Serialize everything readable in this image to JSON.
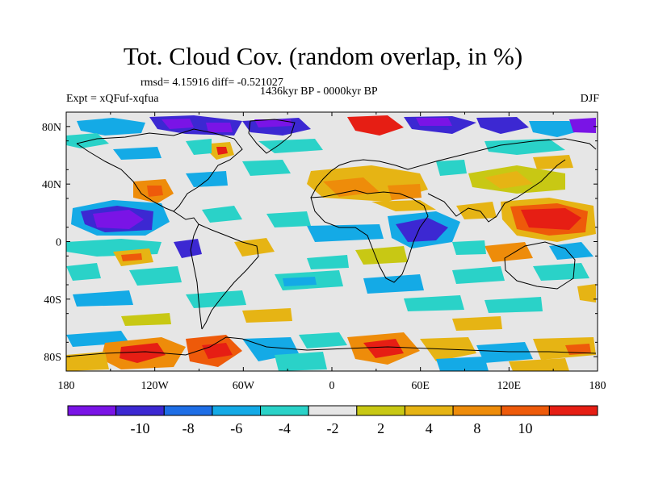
{
  "title": "Tot. Cloud Cov. (random overlap, in %)",
  "stats": "rmsd= 4.15916 diff= -0.521027",
  "period": "1436kyr BP - 0000kyr BP",
  "experiment": "Expt = xQFuf-xqfua",
  "season": "DJF",
  "map": {
    "lat_ticks": [
      "80N",
      "40N",
      "0",
      "40S",
      "80S"
    ],
    "lon_ticks": [
      "180",
      "120W",
      "60W",
      "0",
      "60E",
      "120E",
      "180"
    ]
  },
  "colorbar": {
    "colors": [
      "#7a14e6",
      "#3c28d2",
      "#1e6ee6",
      "#14aae6",
      "#2ad2c8",
      "#e6e6e6",
      "#c8c814",
      "#e6b414",
      "#ee8c0a",
      "#ee5a0a",
      "#e61e14"
    ],
    "labels": [
      "-10",
      "-8",
      "-6",
      "-4",
      "-2",
      "2",
      "4",
      "8",
      "10"
    ]
  }
}
